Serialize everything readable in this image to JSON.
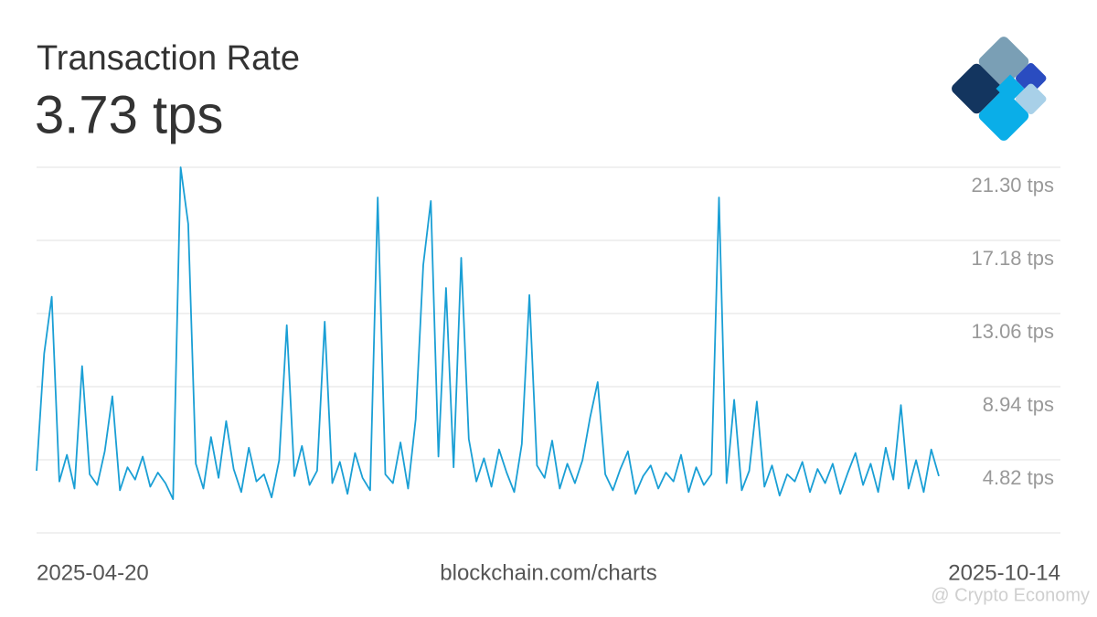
{
  "chart_data": {
    "type": "line",
    "title": "Transaction Rate",
    "subtitle": "3.73 tps",
    "source": "blockchain.com/charts",
    "watermark": "@ Crypto Economy",
    "color": "#1a9fd5",
    "grid": true,
    "ylim": [
      0.7,
      21.3
    ],
    "yticks": [
      {
        "value": 4.82,
        "label": "4.82 tps"
      },
      {
        "value": 8.94,
        "label": "8.94 tps"
      },
      {
        "value": 13.06,
        "label": "13.06 tps"
      },
      {
        "value": 17.18,
        "label": "17.18 tps"
      },
      {
        "value": 21.3,
        "label": "21.30 tps"
      }
    ],
    "categories": [
      "2025-04-20",
      null,
      null,
      null,
      null,
      null,
      null,
      null,
      null,
      null,
      null,
      null,
      null,
      null,
      null,
      null,
      null,
      null,
      null,
      null,
      null,
      null,
      null,
      null,
      null,
      null,
      null,
      null,
      null,
      null,
      null,
      null,
      null,
      null,
      null,
      null,
      null,
      null,
      null,
      null,
      null,
      null,
      null,
      null,
      null,
      null,
      null,
      null,
      null,
      null,
      null,
      null,
      null,
      null,
      null,
      null,
      null,
      null,
      null,
      null,
      null,
      null,
      null,
      null,
      null,
      null,
      null,
      null,
      null,
      null,
      null,
      null,
      null,
      null,
      null,
      null,
      null,
      null,
      null,
      null,
      null,
      null,
      null,
      null,
      null,
      null,
      null,
      null,
      null,
      null,
      null,
      null,
      null,
      null,
      null,
      null,
      null,
      null,
      null,
      null,
      null,
      null,
      null,
      null,
      null,
      null,
      null,
      null,
      null,
      null,
      null,
      null,
      null,
      null,
      null,
      null,
      null,
      null,
      null,
      "2025-10-14"
    ],
    "values": [
      4.2,
      10.8,
      14.0,
      3.6,
      5.1,
      3.2,
      10.1,
      4.0,
      3.4,
      5.3,
      8.4,
      3.1,
      4.4,
      3.7,
      5.0,
      3.3,
      4.1,
      3.5,
      2.6,
      21.3,
      18.1,
      4.6,
      3.2,
      6.1,
      3.8,
      7.0,
      4.3,
      3.0,
      5.5,
      3.6,
      4.0,
      2.7,
      4.8,
      12.4,
      3.9,
      5.6,
      3.4,
      4.2,
      12.6,
      3.5,
      4.7,
      2.9,
      5.2,
      3.8,
      3.1,
      19.6,
      4.0,
      3.5,
      5.8,
      3.2,
      7.1,
      15.8,
      19.4,
      5.0,
      14.5,
      4.4,
      16.2,
      6.0,
      3.6,
      4.9,
      3.3,
      5.4,
      4.1,
      3.0,
      5.7,
      14.1,
      4.5,
      3.8,
      5.9,
      3.2,
      4.6,
      3.5,
      4.8,
      7.2,
      9.2,
      4.0,
      3.1,
      4.3,
      5.3,
      2.9,
      3.9,
      4.5,
      3.2,
      4.1,
      3.6,
      5.1,
      3.0,
      4.4,
      3.4,
      4.0,
      19.6,
      3.5,
      8.2,
      3.1,
      4.2,
      8.1,
      3.3,
      4.5,
      2.8,
      4.0,
      3.6,
      4.7,
      3.0,
      4.3,
      3.5,
      4.6,
      2.9,
      4.1,
      5.2,
      3.4,
      4.6,
      3.0,
      5.5,
      3.7,
      7.9,
      3.2,
      4.8,
      3.0,
      5.4,
      3.9
    ]
  }
}
